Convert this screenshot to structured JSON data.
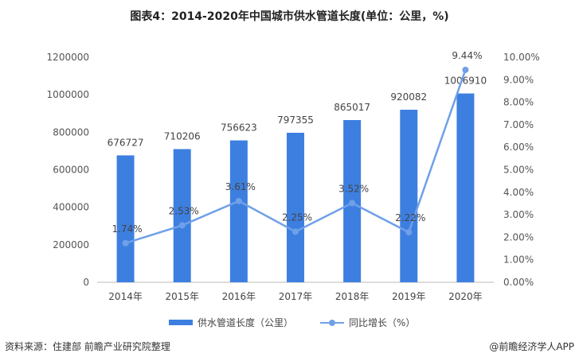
{
  "title": "图表4：2014-2020年中国城市供水管道长度(单位：公里，%)",
  "footer": {
    "source": "资料来源：住建部 前瞻产业研究院整理",
    "brand": "@前瞻经济学人APP"
  },
  "colors": {
    "bar": "#3d7fe0",
    "line": "#6fa0e8"
  },
  "chart_data": {
    "type": "bar",
    "categories": [
      "2014年",
      "2015年",
      "2016年",
      "2017年",
      "2018年",
      "2019年",
      "2020年"
    ],
    "series": [
      {
        "name": "供水管道长度（公里）",
        "type": "bar",
        "axis": "left",
        "values": [
          676727,
          710206,
          756623,
          797355,
          865017,
          920082,
          1006910
        ],
        "labels": [
          "676727",
          "710206",
          "756623",
          "797355",
          "865017",
          "920082",
          "1006910"
        ]
      },
      {
        "name": "同比增长（%）",
        "type": "line",
        "axis": "right",
        "values": [
          1.74,
          2.53,
          3.61,
          2.25,
          3.52,
          2.22,
          9.44
        ],
        "labels": [
          "1.74%",
          "2.53%",
          "3.61%",
          "2.25%",
          "3.52%",
          "2.22%",
          "9.44%"
        ]
      }
    ],
    "y_left": {
      "min": 0,
      "max": 1200000,
      "ticks": [
        "0",
        "200000",
        "400000",
        "600000",
        "800000",
        "1000000",
        "1200000"
      ]
    },
    "y_right": {
      "min": 0,
      "max": 10,
      "ticks": [
        "0.00%",
        "1.00%",
        "2.00%",
        "3.00%",
        "4.00%",
        "5.00%",
        "6.00%",
        "7.00%",
        "8.00%",
        "9.00%",
        "10.00%"
      ]
    },
    "grid": false,
    "legend_position": "bottom"
  }
}
